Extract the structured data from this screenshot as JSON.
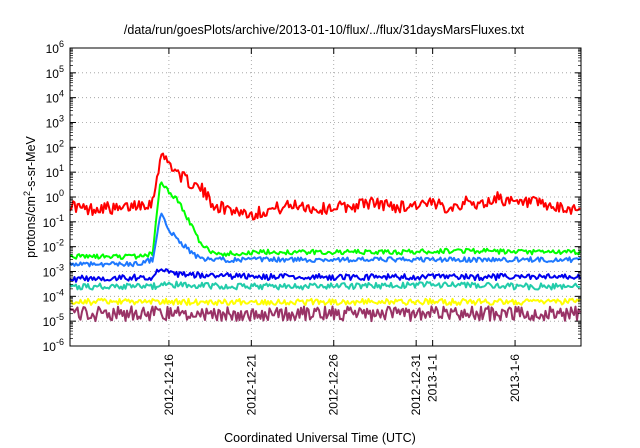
{
  "chart_data": {
    "type": "line",
    "title": "/data/run/goesPlots/archive/2013-01-10/flux/../flux/31daysMarsFluxes.txt",
    "xlabel": "Coordinated Universal Time (UTC)",
    "ylabel": {
      "base": "protons/cm",
      "sup": "2",
      "rest": "-s-sr-MeV"
    },
    "x_domain": [
      "2012-12-10",
      "2013-01-10"
    ],
    "y_scale": "log",
    "ylim": [
      1e-06,
      1000000.0
    ],
    "grid": true,
    "y_ticks": [
      {
        "value": 1e-06,
        "base": "10",
        "exp": "-6"
      },
      {
        "value": 1e-05,
        "base": "10",
        "exp": "-5"
      },
      {
        "value": 0.0001,
        "base": "10",
        "exp": "-4"
      },
      {
        "value": 0.001,
        "base": "10",
        "exp": "-3"
      },
      {
        "value": 0.01,
        "base": "10",
        "exp": "-2"
      },
      {
        "value": 0.1,
        "base": "10",
        "exp": "-1"
      },
      {
        "value": 1.0,
        "base": "10",
        "exp": "0"
      },
      {
        "value": 10.0,
        "base": "10",
        "exp": "1"
      },
      {
        "value": 100.0,
        "base": "10",
        "exp": "2"
      },
      {
        "value": 1000.0,
        "base": "10",
        "exp": "3"
      },
      {
        "value": 10000.0,
        "base": "10",
        "exp": "4"
      },
      {
        "value": 100000.0,
        "base": "10",
        "exp": "5"
      },
      {
        "value": 1000000.0,
        "base": "10",
        "exp": "6"
      }
    ],
    "x_ticks": [
      {
        "date": "2012-12-16",
        "label": "2012-12-16"
      },
      {
        "date": "2012-12-21",
        "label": "2012-12-21"
      },
      {
        "date": "2012-12-26",
        "label": "2012-12-26"
      },
      {
        "date": "2012-12-31",
        "label": "2012-12-31"
      },
      {
        "date": "2013-01-01",
        "label": "2013-1-1"
      },
      {
        "date": "2013-01-06",
        "label": "2013-1-6"
      }
    ],
    "series": [
      {
        "color": "#ff0000",
        "x": [
          "2012-12-10",
          "2012-12-11",
          "2012-12-12",
          "2012-12-13",
          "2012-12-14",
          "2012-12-15",
          "2012-12-15T12:00",
          "2012-12-16",
          "2012-12-16T12:00",
          "2012-12-17",
          "2012-12-17T12:00",
          "2012-12-18",
          "2012-12-18T12:00",
          "2012-12-19",
          "2012-12-20",
          "2012-12-21",
          "2012-12-22",
          "2012-12-23",
          "2012-12-24",
          "2012-12-25",
          "2012-12-26",
          "2012-12-27",
          "2012-12-28",
          "2012-12-29",
          "2012-12-30",
          "2012-12-31",
          "2013-01-01",
          "2013-01-02",
          "2013-01-03",
          "2013-01-04",
          "2013-01-05",
          "2013-01-06",
          "2013-01-07",
          "2013-01-08",
          "2013-01-09",
          "2013-01-10"
        ],
        "values": [
          0.5,
          0.3,
          0.4,
          0.3,
          0.5,
          0.6,
          50,
          25,
          10,
          5,
          3,
          2,
          0.7,
          0.4,
          0.3,
          0.2,
          0.3,
          0.4,
          0.5,
          0.3,
          0.4,
          0.4,
          0.6,
          0.5,
          0.4,
          0.5,
          0.5,
          0.4,
          0.6,
          0.5,
          1.0,
          0.5,
          0.6,
          0.4,
          0.3,
          0.4
        ],
        "baseline": 0.4,
        "jitter": 0.5
      },
      {
        "color": "#00ff00",
        "x": [
          "2012-12-10",
          "2012-12-12",
          "2012-12-14",
          "2012-12-15",
          "2012-12-15T12:00",
          "2012-12-16",
          "2012-12-16T12:00",
          "2012-12-17",
          "2012-12-17T12:00",
          "2012-12-18",
          "2012-12-19",
          "2012-12-22",
          "2012-12-26",
          "2012-12-30",
          "2013-01-03",
          "2013-01-06",
          "2013-01-10"
        ],
        "values": [
          0.004,
          0.004,
          0.004,
          0.005,
          5,
          1.5,
          0.8,
          0.2,
          0.05,
          0.01,
          0.005,
          0.006,
          0.006,
          0.006,
          0.007,
          0.006,
          0.006
        ],
        "baseline": 0.005,
        "jitter": 0.2
      },
      {
        "color": "#1e78ff",
        "x": [
          "2012-12-10",
          "2012-12-12",
          "2012-12-14",
          "2012-12-15",
          "2012-12-15T12:00",
          "2012-12-16",
          "2012-12-16T12:00",
          "2012-12-17",
          "2012-12-17T12:00",
          "2012-12-18",
          "2012-12-19",
          "2012-12-22",
          "2012-12-26",
          "2012-12-30",
          "2013-01-03",
          "2013-01-06",
          "2013-01-10"
        ],
        "values": [
          0.002,
          0.002,
          0.002,
          0.003,
          0.2,
          0.05,
          0.02,
          0.01,
          0.005,
          0.003,
          0.003,
          0.003,
          0.003,
          0.003,
          0.003,
          0.003,
          0.003
        ],
        "baseline": 0.002,
        "jitter": 0.2
      },
      {
        "color": "#0000ee",
        "x": [
          "2012-12-10",
          "2012-12-15",
          "2012-12-15T12:00",
          "2012-12-16",
          "2012-12-18",
          "2012-12-22",
          "2012-12-26",
          "2012-12-30",
          "2013-01-03",
          "2013-01-06",
          "2013-01-10"
        ],
        "values": [
          0.0005,
          0.0006,
          0.0015,
          0.0008,
          0.0007,
          0.0006,
          0.0006,
          0.0006,
          0.0006,
          0.0006,
          0.0006
        ],
        "baseline": 0.0006,
        "jitter": 0.25
      },
      {
        "color": "#22ccaa",
        "x": [
          "2012-12-10",
          "2012-12-15",
          "2012-12-16",
          "2012-12-20",
          "2012-12-26",
          "2013-01-01",
          "2013-01-06",
          "2013-01-10"
        ],
        "values": [
          0.00025,
          0.00025,
          0.0003,
          0.00025,
          0.00025,
          0.0003,
          0.00025,
          0.00025
        ],
        "baseline": 0.00025,
        "jitter": 0.25
      },
      {
        "color": "#ffff00",
        "x": [
          "2012-12-10",
          "2012-12-16",
          "2012-12-22",
          "2012-12-28",
          "2013-01-03",
          "2013-01-10"
        ],
        "values": [
          6e-05,
          6e-05,
          6e-05,
          6e-05,
          6e-05,
          6e-05
        ],
        "baseline": 6e-05,
        "jitter": 0.25
      },
      {
        "color": "#993366",
        "x": [
          "2012-12-10",
          "2012-12-16",
          "2012-12-22",
          "2012-12-28",
          "2013-01-03",
          "2013-01-10"
        ],
        "values": [
          2e-05,
          2e-05,
          2e-05,
          2e-05,
          2e-05,
          2e-05
        ],
        "baseline": 2e-05,
        "jitter": 0.6
      }
    ]
  }
}
